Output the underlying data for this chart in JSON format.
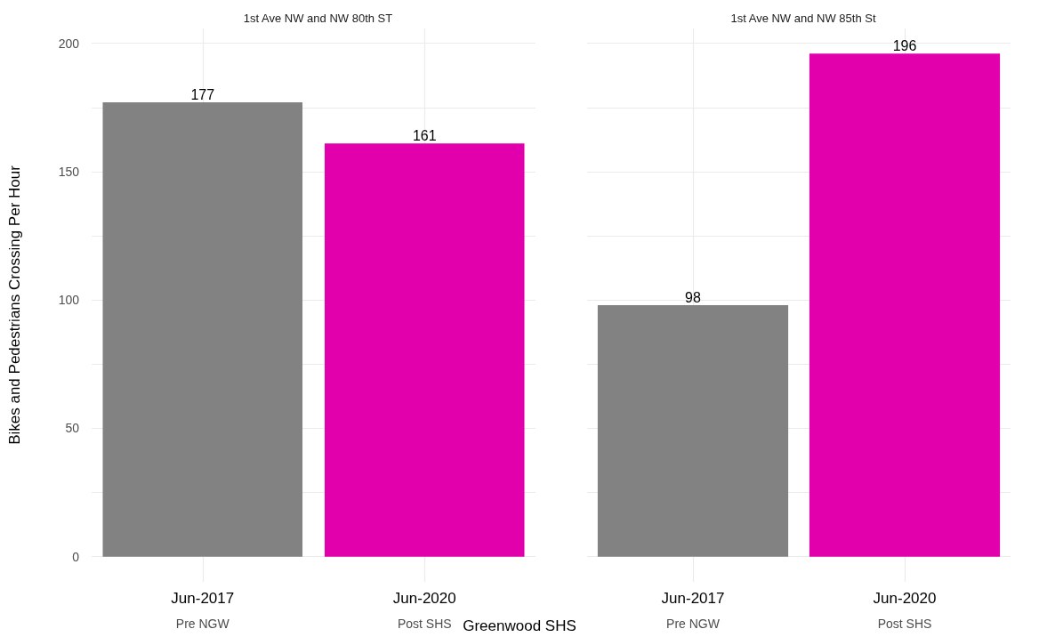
{
  "chart_data": [
    {
      "type": "bar",
      "title": "1st Ave NW and NW 80th ST",
      "xlabel": "Greenwood SHS",
      "ylabel": "Bikes and Pedestrians Crossing Per Hour",
      "categories": [
        "Jun-2017\nPre NGW",
        "Jun-2020\nPost SHS"
      ],
      "values": [
        177,
        161
      ],
      "colors": [
        "#828282",
        "#e200ac"
      ],
      "data_labels": true,
      "ylim": [
        -9.8,
        205.8
      ],
      "yticks": [
        0,
        {
          "value": 25,
          "label": null
        },
        50,
        {
          "value": 75,
          "label": null
        },
        100,
        {
          "value": 125,
          "label": null
        },
        150,
        {
          "value": 175,
          "label": null
        },
        200
      ],
      "grid": true
    },
    {
      "type": "bar",
      "title": "1st Ave NW and NW 85th St",
      "categories": [
        "Jun-2017\nPre NGW",
        "Jun-2020\nPost SHS"
      ],
      "values": [
        98,
        196
      ],
      "colors": [
        "#828282",
        "#e200ac"
      ],
      "data_labels": true,
      "ylim": [
        -9.8,
        205.8
      ],
      "yticks": [
        0,
        {
          "value": 25,
          "label": null
        },
        50,
        {
          "value": 75,
          "label": null
        },
        100,
        {
          "value": 125,
          "label": null
        },
        150,
        {
          "value": 175,
          "label": null
        },
        200
      ],
      "grid": true,
      "tick_labels": "x"
    }
  ]
}
